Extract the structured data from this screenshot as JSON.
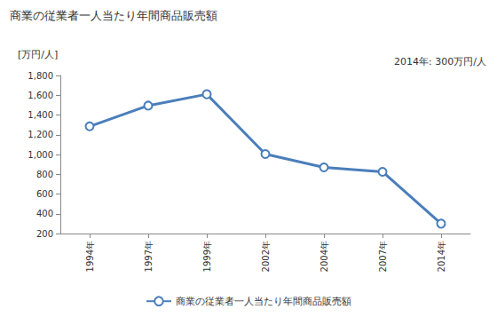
{
  "chart_data": {
    "type": "line",
    "title": "商業の従業者一人当たり年間商品販売額",
    "y_label": "[万円/人]",
    "annotation": "2014年: 300万円/人",
    "categories": [
      "1994年",
      "1997年",
      "1999年",
      "2002年",
      "2004年",
      "2007年",
      "2014年"
    ],
    "series": [
      {
        "name": "商業の従業者一人当たり年間商品販売額",
        "color": "#4a7ebb",
        "marker": "emptyCircle",
        "values": [
          1285,
          1495,
          1610,
          1005,
          870,
          825,
          300
        ]
      }
    ],
    "ylim": [
      200,
      1800
    ],
    "yticks": [
      200,
      400,
      600,
      800,
      {
        "value": 1000,
        "label": "1,000"
      },
      {
        "value": 1200,
        "label": "1,200"
      },
      {
        "value": 1400,
        "label": "1,400"
      },
      {
        "value": 1600,
        "label": "1,600"
      },
      {
        "value": 1800,
        "label": "1,800"
      }
    ],
    "grid": false,
    "legend": "bottom"
  }
}
